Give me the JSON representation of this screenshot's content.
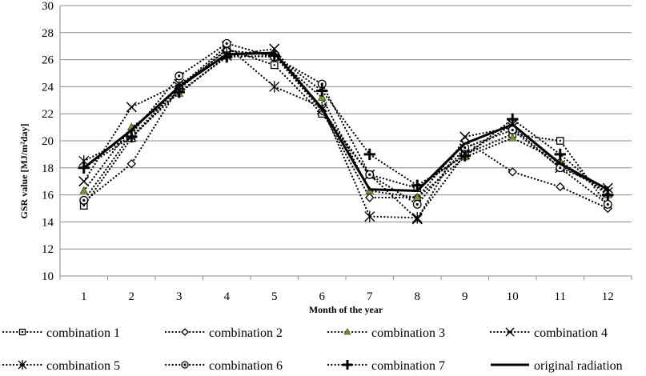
{
  "chart_data": {
    "type": "line",
    "xlabel": "Month of the year",
    "ylabel": "GSR value [MJ/m²day]",
    "x": [
      1,
      2,
      3,
      4,
      5,
      6,
      7,
      8,
      9,
      10,
      11,
      12
    ],
    "xtick_labels": [
      "1",
      "2",
      "3",
      "4",
      "5",
      "6",
      "7",
      "8",
      "9",
      "10",
      "11",
      "12"
    ],
    "ylim": [
      10,
      30
    ],
    "yticks": [
      10,
      12,
      14,
      16,
      18,
      20,
      22,
      24,
      26,
      28,
      30
    ],
    "grid": "horizontal",
    "legend_position": "bottom",
    "series": [
      {
        "name": "combination 1",
        "marker": "square-dot",
        "style": "dotted",
        "values": [
          15.2,
          20.2,
          23.8,
          26.8,
          25.6,
          22.0,
          17.5,
          16.5,
          19.0,
          20.5,
          20.0,
          15.2
        ]
      },
      {
        "name": "combination 2",
        "marker": "diamond",
        "style": "dotted",
        "values": [
          15.5,
          18.3,
          24.0,
          26.7,
          26.3,
          22.2,
          15.8,
          15.8,
          20.0,
          17.7,
          16.6,
          15.0
        ]
      },
      {
        "name": "combination 3",
        "marker": "triangle",
        "style": "dotted",
        "values": [
          16.3,
          21.0,
          23.5,
          26.3,
          26.2,
          23.2,
          16.3,
          15.8,
          18.8,
          20.2,
          18.5,
          16.0
        ]
      },
      {
        "name": "combination 4",
        "marker": "x",
        "style": "dotted",
        "values": [
          17.0,
          22.5,
          24.2,
          26.3,
          26.8,
          22.3,
          17.5,
          14.2,
          20.3,
          21.0,
          18.0,
          16.5
        ]
      },
      {
        "name": "combination 5",
        "marker": "asterisk",
        "style": "dotted",
        "values": [
          18.5,
          20.3,
          24.0,
          27.0,
          24.0,
          22.5,
          14.4,
          14.3,
          19.0,
          21.2,
          18.2,
          16.2
        ]
      },
      {
        "name": "combination 6",
        "marker": "circle-dot",
        "style": "dotted",
        "values": [
          15.6,
          20.5,
          24.8,
          27.2,
          26.2,
          24.2,
          17.5,
          15.3,
          19.5,
          20.8,
          18.0,
          15.3
        ]
      },
      {
        "name": "combination 7",
        "marker": "plus",
        "style": "dotted",
        "values": [
          18.0,
          20.3,
          23.6,
          26.2,
          26.3,
          23.7,
          19.0,
          16.7,
          18.9,
          21.6,
          19.0,
          16.0
        ]
      },
      {
        "name": "original radiation",
        "marker": "none",
        "style": "solid",
        "values": [
          18.0,
          20.8,
          24.0,
          26.4,
          26.5,
          22.4,
          16.4,
          16.3,
          19.8,
          21.2,
          18.3,
          16.4
        ]
      }
    ]
  }
}
